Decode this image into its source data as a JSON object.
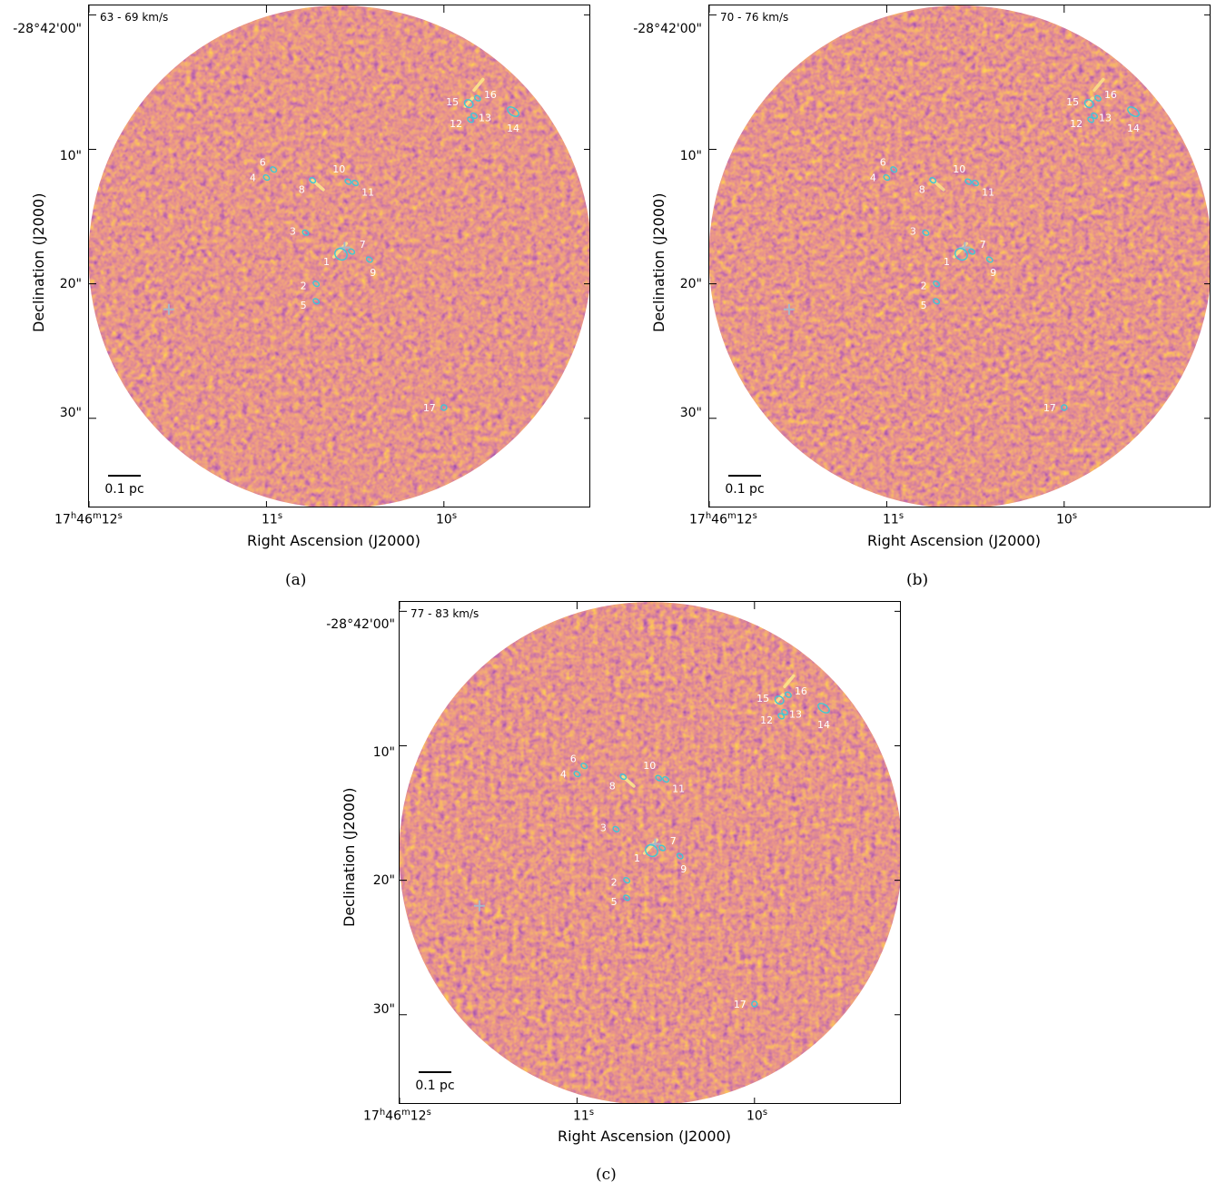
{
  "panels": [
    {
      "id": "a",
      "velocity_label": "63 - 69   km/s",
      "caption": "(a)",
      "sources": [
        {
          "id": "1",
          "ra_s": 10.58,
          "dec_s": 17.8
        },
        {
          "id": "2",
          "ra_s": 10.72,
          "dec_s": 20.0
        },
        {
          "id": "3",
          "ra_s": 10.78,
          "dec_s": 16.2
        },
        {
          "id": "4",
          "ra_s": 11.0,
          "dec_s": 12.1
        },
        {
          "id": "5",
          "ra_s": 10.72,
          "dec_s": 21.3
        },
        {
          "id": "6",
          "ra_s": 10.96,
          "dec_s": 11.5
        },
        {
          "id": "7",
          "ra_s": 10.52,
          "dec_s": 17.6
        },
        {
          "id": "8",
          "ra_s": 10.74,
          "dec_s": 12.3
        },
        {
          "id": "9",
          "ra_s": 10.42,
          "dec_s": 18.2
        },
        {
          "id": "10",
          "ra_s": 10.54,
          "dec_s": 12.4
        },
        {
          "id": "11",
          "ra_s": 10.5,
          "dec_s": 12.5
        },
        {
          "id": "12",
          "ra_s": 9.85,
          "dec_s": 7.8
        },
        {
          "id": "13",
          "ra_s": 9.83,
          "dec_s": 7.5
        },
        {
          "id": "14",
          "ra_s": 9.61,
          "dec_s": 7.2
        },
        {
          "id": "15",
          "ra_s": 9.86,
          "dec_s": 6.6
        },
        {
          "id": "16",
          "ra_s": 9.81,
          "dec_s": 6.2
        },
        {
          "id": "17",
          "ra_s": 10.0,
          "dec_s": 29.2
        }
      ]
    },
    {
      "id": "b",
      "velocity_label": "70 - 76   km/s",
      "caption": "(b)",
      "sources": [
        {
          "id": "1",
          "ra_s": 10.58,
          "dec_s": 17.8
        },
        {
          "id": "2",
          "ra_s": 10.72,
          "dec_s": 20.0
        },
        {
          "id": "3",
          "ra_s": 10.78,
          "dec_s": 16.2
        },
        {
          "id": "4",
          "ra_s": 11.0,
          "dec_s": 12.1
        },
        {
          "id": "5",
          "ra_s": 10.72,
          "dec_s": 21.3
        },
        {
          "id": "6",
          "ra_s": 10.96,
          "dec_s": 11.5
        },
        {
          "id": "7",
          "ra_s": 10.52,
          "dec_s": 17.6
        },
        {
          "id": "8",
          "ra_s": 10.74,
          "dec_s": 12.3
        },
        {
          "id": "9",
          "ra_s": 10.42,
          "dec_s": 18.2
        },
        {
          "id": "10",
          "ra_s": 10.54,
          "dec_s": 12.4
        },
        {
          "id": "11",
          "ra_s": 10.5,
          "dec_s": 12.5
        },
        {
          "id": "12",
          "ra_s": 9.85,
          "dec_s": 7.8
        },
        {
          "id": "13",
          "ra_s": 9.83,
          "dec_s": 7.5
        },
        {
          "id": "14",
          "ra_s": 9.61,
          "dec_s": 7.2
        },
        {
          "id": "15",
          "ra_s": 9.86,
          "dec_s": 6.6
        },
        {
          "id": "16",
          "ra_s": 9.81,
          "dec_s": 6.2
        },
        {
          "id": "17",
          "ra_s": 10.0,
          "dec_s": 29.2
        }
      ]
    },
    {
      "id": "c",
      "velocity_label": "77 - 83   km/s",
      "caption": "(c)",
      "sources": [
        {
          "id": "1",
          "ra_s": 10.58,
          "dec_s": 17.8
        },
        {
          "id": "2",
          "ra_s": 10.72,
          "dec_s": 20.0
        },
        {
          "id": "3",
          "ra_s": 10.78,
          "dec_s": 16.2
        },
        {
          "id": "4",
          "ra_s": 11.0,
          "dec_s": 12.1
        },
        {
          "id": "5",
          "ra_s": 10.72,
          "dec_s": 21.3
        },
        {
          "id": "6",
          "ra_s": 10.96,
          "dec_s": 11.5
        },
        {
          "id": "7",
          "ra_s": 10.52,
          "dec_s": 17.6
        },
        {
          "id": "8",
          "ra_s": 10.74,
          "dec_s": 12.3
        },
        {
          "id": "9",
          "ra_s": 10.42,
          "dec_s": 18.2
        },
        {
          "id": "10",
          "ra_s": 10.54,
          "dec_s": 12.4
        },
        {
          "id": "11",
          "ra_s": 10.5,
          "dec_s": 12.5
        },
        {
          "id": "12",
          "ra_s": 9.85,
          "dec_s": 7.8
        },
        {
          "id": "13",
          "ra_s": 9.83,
          "dec_s": 7.5
        },
        {
          "id": "14",
          "ra_s": 9.61,
          "dec_s": 7.2
        },
        {
          "id": "15",
          "ra_s": 9.86,
          "dec_s": 6.6
        },
        {
          "id": "16",
          "ra_s": 9.81,
          "dec_s": 6.2
        },
        {
          "id": "17",
          "ra_s": 10.0,
          "dec_s": 29.2
        }
      ]
    }
  ],
  "axes": {
    "xlabel": "Right Ascension (J2000)",
    "ylabel": "Declination (J2000)",
    "ra_ticks": [
      {
        "value_s": 12,
        "label": "17h46m12s"
      },
      {
        "value_s": 11,
        "label": "11s"
      },
      {
        "value_s": 10,
        "label": "10s"
      }
    ],
    "dec_ticks": [
      {
        "value_arcsec": 0,
        "label": "-28°42'00\""
      },
      {
        "value_arcsec": 10,
        "label": "10\""
      },
      {
        "value_arcsec": 20,
        "label": "20\""
      },
      {
        "value_arcsec": 30,
        "label": "30\""
      }
    ],
    "ra_range_s": [
      12.0,
      9.17
    ],
    "dec_range_arcsec": [
      -0.7,
      36.7
    ]
  },
  "scale_bar": {
    "label": "0.1 pc"
  },
  "colors": {
    "colormap": "inferno",
    "contours": "#3fc7d6",
    "cross": "#a9b6c9",
    "label_text": "#ffffff"
  }
}
